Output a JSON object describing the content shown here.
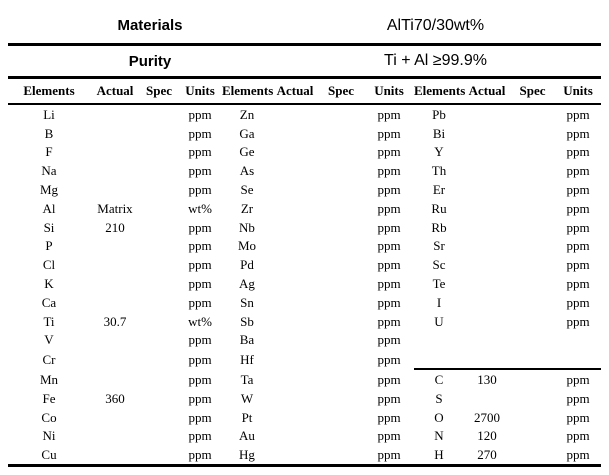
{
  "header": {
    "materials_label": "Materials",
    "materials_value": "AlTi70/30wt%",
    "purity_label": "Purity",
    "purity_value": "Ti + Al ≥99.9%"
  },
  "table": {
    "column_headers": [
      "Elements",
      "Actual",
      "Spec",
      "Units"
    ],
    "group_count": 3,
    "separator_row_index": 14,
    "rows": [
      [
        "Li",
        "",
        "",
        "ppm",
        "Zn",
        "",
        "",
        "ppm",
        "Pb",
        "",
        "",
        "ppm"
      ],
      [
        "B",
        "",
        "",
        "ppm",
        "Ga",
        "",
        "",
        "ppm",
        "Bi",
        "",
        "",
        "ppm"
      ],
      [
        "F",
        "",
        "",
        "ppm",
        "Ge",
        "",
        "",
        "ppm",
        "Y",
        "",
        "",
        "ppm"
      ],
      [
        "Na",
        "",
        "",
        "ppm",
        "As",
        "",
        "",
        "ppm",
        "Th",
        "",
        "",
        "ppm"
      ],
      [
        "Mg",
        "",
        "",
        "ppm",
        "Se",
        "",
        "",
        "ppm",
        "Er",
        "",
        "",
        "ppm"
      ],
      [
        "Al",
        "Matrix",
        "",
        "wt%",
        "Zr",
        "",
        "",
        "ppm",
        "Ru",
        "",
        "",
        "ppm"
      ],
      [
        "Si",
        "210",
        "",
        "ppm",
        "Nb",
        "",
        "",
        "ppm",
        "Rb",
        "",
        "",
        "ppm"
      ],
      [
        "P",
        "",
        "",
        "ppm",
        "Mo",
        "",
        "",
        "ppm",
        "Sr",
        "",
        "",
        "ppm"
      ],
      [
        "Cl",
        "",
        "",
        "ppm",
        "Pd",
        "",
        "",
        "ppm",
        "Sc",
        "",
        "",
        "ppm"
      ],
      [
        "K",
        "",
        "",
        "ppm",
        "Ag",
        "",
        "",
        "ppm",
        "Te",
        "",
        "",
        "ppm"
      ],
      [
        "Ca",
        "",
        "",
        "ppm",
        "Sn",
        "",
        "",
        "ppm",
        "I",
        "",
        "",
        "ppm"
      ],
      [
        "Ti",
        "30.7",
        "",
        "wt%",
        "Sb",
        "",
        "",
        "ppm",
        "U",
        "",
        "",
        "ppm"
      ],
      [
        "V",
        "",
        "",
        "ppm",
        "Ba",
        "",
        "",
        "ppm",
        "",
        "",
        "",
        ""
      ],
      [
        "Cr",
        "",
        "",
        "ppm",
        "Hf",
        "",
        "",
        "ppm",
        "",
        "",
        "",
        ""
      ],
      [
        "Mn",
        "",
        "",
        "ppm",
        "Ta",
        "",
        "",
        "ppm",
        "C",
        "130",
        "",
        "ppm"
      ],
      [
        "Fe",
        "360",
        "",
        "ppm",
        "W",
        "",
        "",
        "ppm",
        "S",
        "",
        "",
        "ppm"
      ],
      [
        "Co",
        "",
        "",
        "ppm",
        "Pt",
        "",
        "",
        "ppm",
        "O",
        "2700",
        "",
        "ppm"
      ],
      [
        "Ni",
        "",
        "",
        "ppm",
        "Au",
        "",
        "",
        "ppm",
        "N",
        "120",
        "",
        "ppm"
      ],
      [
        "Cu",
        "",
        "",
        "ppm",
        "Hg",
        "",
        "",
        "ppm",
        "H",
        "270",
        "",
        "ppm"
      ]
    ]
  },
  "colors": {
    "text": "#000000",
    "background": "#ffffff",
    "rule": "#000000"
  }
}
